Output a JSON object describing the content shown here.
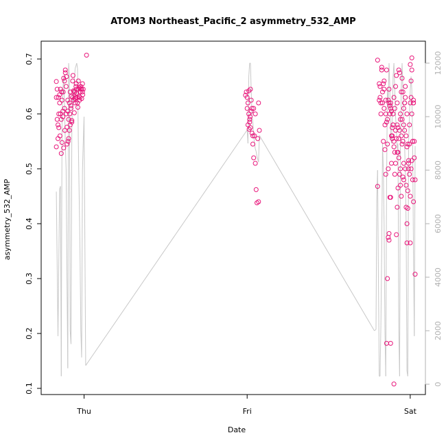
{
  "chart_data": {
    "type": "scatter",
    "title": "ATOM3 Northeast_Pacific_2 asymmetry_532_AMP",
    "xlabel": "Date",
    "ylabel": "asymmetry_532_AMP",
    "x_ticks": [
      "Thu",
      "Fri",
      "Sat"
    ],
    "x_range_days": [
      -0.2,
      2.03
    ],
    "y_ticks": [
      "0.1",
      "0.2",
      "0.3",
      "0.4",
      "0.5",
      "0.6",
      "0.7"
    ],
    "ylim": [
      0.1,
      0.715
    ],
    "y2_ticks": [
      "0",
      "2000",
      "4000",
      "6000",
      "8000",
      "10000",
      "12000"
    ],
    "y2lim": [
      0,
      12000
    ],
    "grid": false,
    "colors": {
      "points": "#e8157a",
      "line": "#c8c8c8",
      "right_axis": "#b0b0b0"
    },
    "series": [
      {
        "kind": "points",
        "axis": "left",
        "x": [
          -0.17,
          -0.17,
          -0.17,
          -0.165,
          -0.165,
          -0.16,
          -0.16,
          -0.158,
          -0.155,
          -0.155,
          -0.15,
          -0.15,
          -0.148,
          -0.145,
          -0.145,
          -0.14,
          -0.14,
          -0.138,
          -0.135,
          -0.135,
          -0.13,
          -0.13,
          -0.128,
          -0.125,
          -0.125,
          -0.12,
          -0.12,
          -0.118,
          -0.115,
          -0.115,
          -0.11,
          -0.11,
          -0.108,
          -0.105,
          -0.105,
          -0.1,
          -0.1,
          -0.098,
          -0.095,
          -0.095,
          -0.09,
          -0.09,
          -0.088,
          -0.085,
          -0.085,
          -0.08,
          -0.08,
          -0.078,
          -0.075,
          -0.075,
          -0.07,
          -0.07,
          -0.068,
          -0.065,
          -0.065,
          -0.06,
          -0.06,
          -0.058,
          -0.055,
          -0.055,
          -0.05,
          -0.05,
          -0.048,
          -0.045,
          -0.045,
          -0.04,
          -0.04,
          -0.038,
          -0.035,
          -0.035,
          -0.03,
          -0.03,
          -0.028,
          -0.025,
          -0.025,
          -0.02,
          -0.02,
          -0.015,
          -0.015,
          -0.01,
          -0.01,
          -0.008,
          -0.005,
          0.015,
          0.99,
          0.995,
          1.0,
          1.0,
          1.005,
          1.005,
          1.01,
          1.01,
          1.012,
          1.015,
          1.015,
          1.018,
          1.02,
          1.02,
          1.025,
          1.025,
          1.03,
          1.03,
          1.035,
          1.035,
          1.04,
          1.04,
          1.045,
          1.05,
          1.05,
          1.055,
          1.06,
          1.065,
          1.07,
          1.07,
          1.075,
          1.8,
          1.8,
          1.81,
          1.81,
          1.815,
          1.815,
          1.82,
          1.82,
          1.825,
          1.825,
          1.83,
          1.83,
          1.835,
          1.835,
          1.84,
          1.84,
          1.845,
          1.845,
          1.85,
          1.85,
          1.855,
          1.855,
          1.86,
          1.86,
          1.865,
          1.865,
          1.87,
          1.87,
          1.875,
          1.875,
          1.88,
          1.88,
          1.885,
          1.885,
          1.89,
          1.89,
          1.895,
          1.895,
          1.9,
          1.9,
          1.905,
          1.905,
          1.91,
          1.91,
          1.915,
          1.915,
          1.92,
          1.92,
          1.925,
          1.925,
          1.93,
          1.93,
          1.935,
          1.935,
          1.94,
          1.94,
          1.945,
          1.945,
          1.95,
          1.95,
          1.955,
          1.955,
          1.96,
          1.96,
          1.965,
          1.965,
          1.97,
          1.97,
          1.975,
          1.975,
          1.98,
          1.98,
          1.985,
          1.985,
          1.99,
          1.99,
          1.995,
          1.995,
          2.0,
          2.0,
          2.005,
          2.005,
          2.01,
          2.01,
          2.015,
          2.015,
          2.02,
          2.02,
          2.025,
          2.025,
          2.03,
          2.03,
          1.855,
          1.86,
          1.865,
          1.87,
          1.875,
          1.88,
          1.885,
          1.89,
          1.895,
          1.9,
          1.905,
          1.91,
          1.915,
          1.92,
          1.925,
          1.93,
          1.935,
          1.94,
          1.945,
          1.95,
          1.955,
          1.96,
          1.965,
          1.97,
          1.975,
          1.98,
          1.985,
          1.99,
          1.995,
          2.0,
          2.005,
          2.01,
          2.015,
          2.02,
          1.84,
          1.85,
          1.87,
          1.88,
          1.9,
          1.92,
          1.94,
          1.96,
          1.98,
          2.0,
          2.01,
          2.02
        ],
        "y": [
          0.659,
          0.63,
          0.54,
          0.645,
          0.59,
          0.555,
          0.58,
          0.63,
          0.6,
          0.575,
          0.62,
          0.635,
          0.56,
          0.6,
          0.645,
          0.528,
          0.59,
          0.64,
          0.548,
          0.625,
          0.595,
          0.605,
          0.64,
          0.665,
          0.538,
          0.66,
          0.61,
          0.57,
          0.675,
          0.68,
          0.65,
          0.6,
          0.668,
          0.576,
          0.545,
          0.605,
          0.625,
          0.55,
          0.555,
          0.59,
          0.57,
          0.62,
          0.6,
          0.58,
          0.64,
          0.615,
          0.61,
          0.632,
          0.585,
          0.588,
          0.63,
          0.66,
          0.67,
          0.625,
          0.642,
          0.602,
          0.641,
          0.639,
          0.62,
          0.628,
          0.63,
          0.65,
          0.655,
          0.638,
          0.645,
          0.63,
          0.62,
          0.612,
          0.645,
          0.66,
          0.632,
          0.648,
          0.625,
          0.63,
          0.64,
          0.646,
          0.65,
          0.645,
          0.628,
          0.64,
          0.655,
          0.635,
          0.645,
          0.707,
          0.634,
          0.64,
          0.63,
          0.61,
          0.58,
          0.62,
          0.6,
          0.642,
          0.572,
          0.585,
          0.59,
          0.595,
          0.575,
          0.645,
          0.625,
          0.605,
          0.61,
          0.565,
          0.56,
          0.545,
          0.52,
          0.61,
          0.56,
          0.51,
          0.6,
          0.462,
          0.438,
          0.555,
          0.44,
          0.62,
          0.57,
          0.468,
          0.698,
          0.655,
          0.625,
          0.65,
          0.63,
          0.62,
          0.6,
          0.685,
          0.68,
          0.62,
          0.64,
          0.655,
          0.55,
          0.645,
          0.66,
          0.535,
          0.58,
          0.625,
          0.6,
          0.68,
          0.585,
          0.59,
          0.545,
          0.625,
          0.5,
          0.645,
          0.62,
          0.6,
          0.615,
          0.62,
          0.61,
          0.605,
          0.56,
          0.575,
          0.56,
          0.6,
          0.58,
          0.54,
          0.55,
          0.49,
          0.53,
          0.57,
          0.51,
          0.555,
          0.38,
          0.53,
          0.58,
          0.53,
          0.465,
          0.555,
          0.52,
          0.57,
          0.49,
          0.5,
          0.59,
          0.45,
          0.56,
          0.545,
          0.59,
          0.55,
          0.485,
          0.51,
          0.48,
          0.62,
          0.57,
          0.5,
          0.63,
          0.56,
          0.47,
          0.54,
          0.4,
          0.545,
          0.46,
          0.5,
          0.515,
          0.49,
          0.545,
          0.365,
          0.45,
          0.5,
          0.63,
          0.6,
          0.515,
          0.55,
          0.48,
          0.62,
          0.44,
          0.55,
          0.52,
          0.48,
          0.308,
          0.182,
          0.3,
          0.375,
          0.382,
          0.448,
          0.448,
          0.51,
          0.555,
          0.58,
          0.63,
          0.61,
          0.65,
          0.67,
          0.62,
          0.575,
          0.68,
          0.675,
          0.6,
          0.64,
          0.665,
          0.64,
          0.61,
          0.62,
          0.65,
          0.43,
          0.365,
          0.428,
          0.51,
          0.58,
          0.62,
          0.66,
          0.68,
          0.55,
          0.62,
          0.61,
          0.49,
          0.37,
          0.182,
          0.108,
          0.43,
          0.47,
          0.58,
          0.6,
          0.69,
          0.702,
          0.625
        ]
      },
      {
        "kind": "line",
        "axis": "right",
        "x": [
          -0.17,
          -0.16,
          -0.15,
          -0.145,
          -0.14,
          -0.135,
          -0.13,
          -0.125,
          -0.12,
          -0.115,
          -0.11,
          -0.105,
          -0.1,
          -0.095,
          -0.09,
          -0.085,
          -0.08,
          -0.075,
          -0.07,
          -0.065,
          -0.06,
          -0.055,
          -0.05,
          -0.045,
          -0.04,
          -0.035,
          -0.03,
          -0.025,
          -0.02,
          -0.015,
          -0.01,
          -0.005,
          0.0,
          0.01,
          1.0,
          1.005,
          1.01,
          1.015,
          1.02,
          1.025,
          1.03,
          1.035,
          1.04,
          1.045,
          1.05,
          1.055,
          1.06,
          1.065,
          1.07,
          1.075,
          1.78,
          1.79,
          1.795,
          1.8,
          1.805,
          1.81,
          1.815,
          1.82,
          1.825,
          1.83,
          1.835,
          1.84,
          1.845,
          1.85,
          1.855,
          1.86,
          1.865,
          1.87,
          1.875,
          1.88,
          1.885,
          1.89,
          1.895,
          1.9,
          1.905,
          1.91,
          1.915,
          1.92,
          1.925,
          1.93,
          1.935,
          1.94,
          1.945,
          1.95,
          1.955,
          1.96,
          1.965,
          1.97,
          1.975,
          1.98,
          1.985,
          1.99,
          1.995,
          2.0,
          2.005,
          2.01,
          2.015,
          2.02,
          2.025,
          2.03
        ],
        "y": [
          7200,
          1800,
          7300,
          7400,
          300,
          10000,
          11000,
          11500,
          10500,
          9000,
          8000,
          4000,
          600,
          12000,
          11500,
          2000,
          1500,
          9500,
          11000,
          10500,
          11300,
          11800,
          11900,
          12000,
          11800,
          9000,
          7000,
          5000,
          2000,
          1000,
          8000,
          9000,
          10000,
          700,
          9500,
          9000,
          11500,
          12000,
          12000,
          11000,
          10000,
          9800,
          9300,
          9000,
          8800,
          8700,
          8500,
          8400,
          8300,
          9300,
          2000,
          2050,
          7000,
          8000,
          4000,
          300,
          300,
          2200,
          5000,
          9000,
          8000,
          6000,
          2000,
          300,
          7500,
          11000,
          10500,
          12000,
          11000,
          9500,
          9000,
          10000,
          11500,
          12000,
          11000,
          10000,
          9500,
          8800,
          9000,
          2000,
          300,
          9000,
          11000,
          12000,
          11000,
          10000,
          9000,
          8000,
          6000,
          500,
          300,
          9000,
          10000,
          11000,
          11500,
          11000,
          9000,
          5000,
          1800,
          8900
        ]
      }
    ]
  }
}
